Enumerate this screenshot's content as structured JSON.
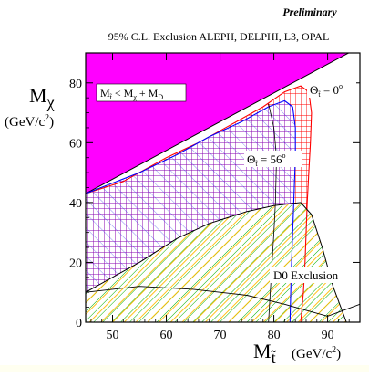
{
  "chart_data": {
    "type": "area",
    "preliminary": "Preliminary",
    "title": "95%  C.L. Exclusion ALEPH, DELPHI, L3, OPAL",
    "ylabel_main": "M",
    "ylabel_sub": "χ",
    "ylabel_unit": "(GeV/c",
    "ylabel_unit_sup": "2",
    "ylabel_unit_close": ")",
    "xlabel_main": "M",
    "xlabel_sub": "t̃",
    "xlabel_unit": "(GeV/c",
    "xlabel_unit_sup": "2",
    "xlabel_unit_close": ")",
    "xlim": [
      45,
      96
    ],
    "ylim": [
      0,
      90
    ],
    "xticks": [
      50,
      60,
      70,
      80,
      90
    ],
    "yticks": [
      0,
      20,
      40,
      60,
      80
    ],
    "annotations": {
      "kinematic": {
        "m": "M",
        "sub_t": "t̃",
        "lt": " < M",
        "sub_chi": "χ",
        "plus": " + M",
        "sub_d": "D"
      },
      "theta0": {
        "theta": "Θ",
        "sub": "t̃",
        "eq": " = 0",
        "sup": "o"
      },
      "theta56": {
        "theta": "Θ",
        "sub": "t̃",
        "eq": " = 56",
        "sup": "o"
      },
      "d0": "D0 Exclusion"
    },
    "kinematic_boundary": [
      [
        45,
        43
      ],
      [
        96,
        92
      ]
    ],
    "regions": {
      "theta0_exclusion": [
        [
          45,
          43
        ],
        [
          52,
          47
        ],
        [
          60,
          55
        ],
        [
          66,
          60
        ],
        [
          72,
          66
        ],
        [
          78,
          72
        ],
        [
          82,
          77
        ],
        [
          85,
          79
        ],
        [
          86.5,
          77
        ],
        [
          87,
          70
        ],
        [
          86.8,
          60
        ],
        [
          86.5,
          50
        ],
        [
          86.2,
          40
        ],
        [
          86,
          30
        ],
        [
          85.8,
          20
        ],
        [
          85.5,
          10
        ],
        [
          85,
          0
        ]
      ],
      "theta56_exclusion": [
        [
          45,
          43
        ],
        [
          55,
          50
        ],
        [
          62,
          56
        ],
        [
          68,
          62
        ],
        [
          74,
          67
        ],
        [
          79,
          72
        ],
        [
          82,
          74
        ],
        [
          83.5,
          72
        ],
        [
          84,
          65
        ],
        [
          84,
          55
        ],
        [
          83.8,
          45
        ],
        [
          83.5,
          30
        ],
        [
          83.2,
          15
        ],
        [
          83,
          0
        ]
      ],
      "d0_exclusion": [
        [
          45,
          10
        ],
        [
          55,
          20
        ],
        [
          62,
          28
        ],
        [
          68,
          33
        ],
        [
          75,
          37
        ],
        [
          80,
          39
        ],
        [
          85,
          40
        ],
        [
          87,
          36
        ],
        [
          89,
          25
        ],
        [
          91,
          12
        ],
        [
          93.5,
          0
        ]
      ]
    },
    "extra_contours": {
      "thin_inner": [
        [
          79,
          73
        ],
        [
          80,
          65
        ],
        [
          80.5,
          55
        ],
        [
          80.3,
          40
        ],
        [
          80,
          30
        ],
        [
          79.5,
          15
        ],
        [
          79,
          0
        ]
      ],
      "d0_lower": [
        [
          45,
          10
        ],
        [
          55,
          12
        ],
        [
          65,
          11
        ],
        [
          75,
          9
        ],
        [
          82,
          6
        ],
        [
          86,
          4
        ],
        [
          90,
          2
        ],
        [
          96,
          6
        ]
      ]
    },
    "colors": {
      "kinematic_fill": "#ff00ff",
      "theta0_hatch": "#ff0000",
      "theta56_hatch": "#0000ff",
      "d0_hatch": "#00c000",
      "d0_hatch2": "#ffcc00",
      "grid_purple": "#9900aa"
    },
    "grid": false,
    "legend": "none"
  }
}
